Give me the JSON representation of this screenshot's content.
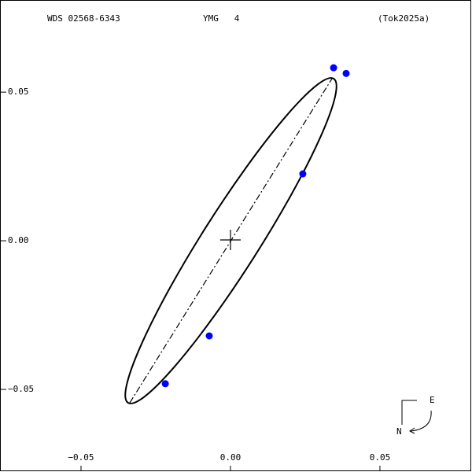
{
  "chart_data": {
    "type": "scatter",
    "header": [
      "WDS 02568-6343",
      "YMG   4",
      "(Tok2025a)"
    ],
    "x": [
      0.0345,
      0.0387,
      0.0242,
      -0.0071,
      -0.0218
    ],
    "values": [
      0.0582,
      0.0563,
      0.0225,
      -0.032,
      -0.0481
    ],
    "color": "#0000ff",
    "xlim": [
      -0.0771,
      0.0808
    ],
    "ylim": [
      -0.0778,
      0.081
    ],
    "xticks": [
      {
        "value": -0.05,
        "label": "−0.05"
      },
      {
        "value": 0,
        "label": "0.00"
      },
      0.05
    ],
    "yticks": [
      0.05,
      {
        "value": 0,
        "label": "0.00"
      },
      {
        "value": -0.05,
        "label": "−0.05"
      }
    ],
    "compass": [
      "E",
      "N"
    ]
  }
}
